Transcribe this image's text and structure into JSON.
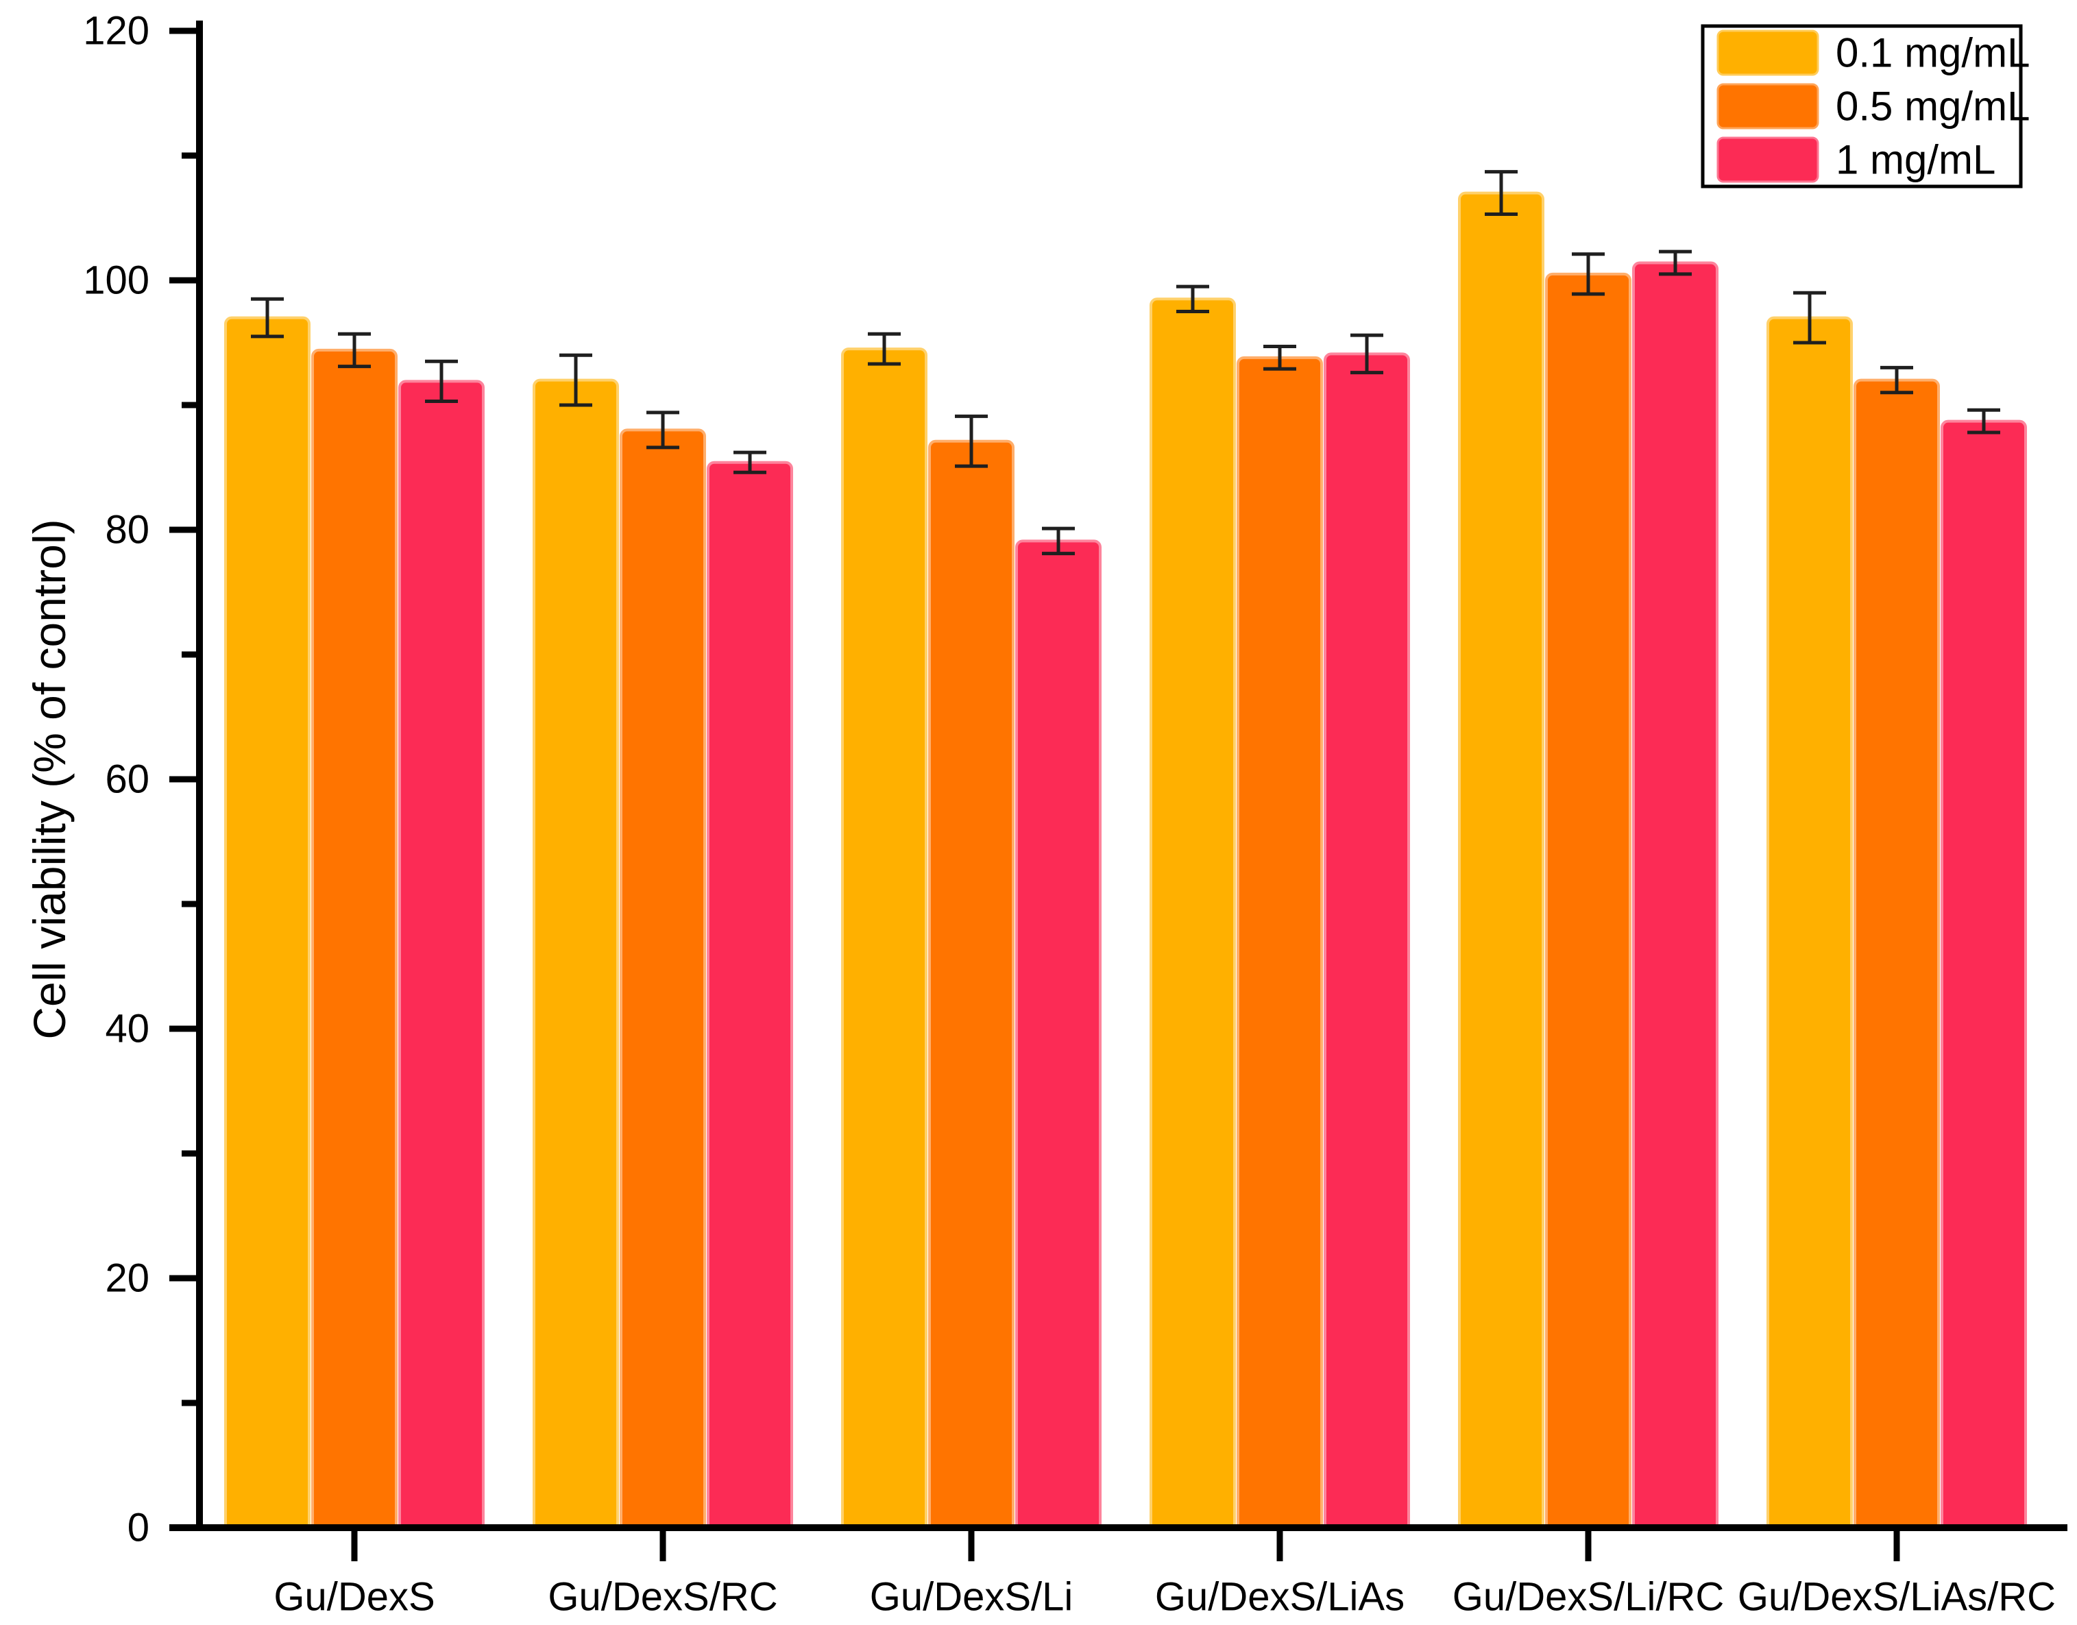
{
  "chart_data": {
    "type": "bar",
    "title": "",
    "xlabel": "",
    "ylabel": "Cell viability (% of control)",
    "ylim": [
      0,
      120
    ],
    "yticks_major": [
      0,
      20,
      40,
      60,
      80,
      100,
      120
    ],
    "yticks_minor": [
      10,
      30,
      50,
      70,
      90,
      110
    ],
    "grid": false,
    "legend_position": "top-right",
    "background_color": "#ffffff",
    "axis_color": "#000000",
    "error_bar_color": "#1f1f1f",
    "categories": [
      "Gu/DexS",
      "Gu/DexS/RC",
      "Gu/DexS/Li",
      "Gu/DexS/LiAs",
      "Gu/DexS/Li/RC",
      "Gu/DexS/LiAs/RC"
    ],
    "series": [
      {
        "name": "0.1 mg/mL",
        "color": "#FFB000",
        "values": [
          97.0,
          92.0,
          94.5,
          98.5,
          107.0,
          97.0
        ],
        "errors": [
          1.5,
          2.0,
          1.2,
          1.0,
          1.7,
          2.0
        ]
      },
      {
        "name": "0.5 mg/mL",
        "color": "#FF7400",
        "values": [
          94.4,
          88.0,
          87.1,
          93.8,
          100.5,
          92.0
        ],
        "errors": [
          1.3,
          1.4,
          2.0,
          0.9,
          1.6,
          1.0
        ]
      },
      {
        "name": "1 mg/mL",
        "color": "#FC2B55",
        "values": [
          91.9,
          85.4,
          79.1,
          94.1,
          101.4,
          88.7
        ],
        "errors": [
          1.6,
          0.8,
          1.0,
          1.5,
          0.9,
          0.9
        ]
      }
    ]
  }
}
